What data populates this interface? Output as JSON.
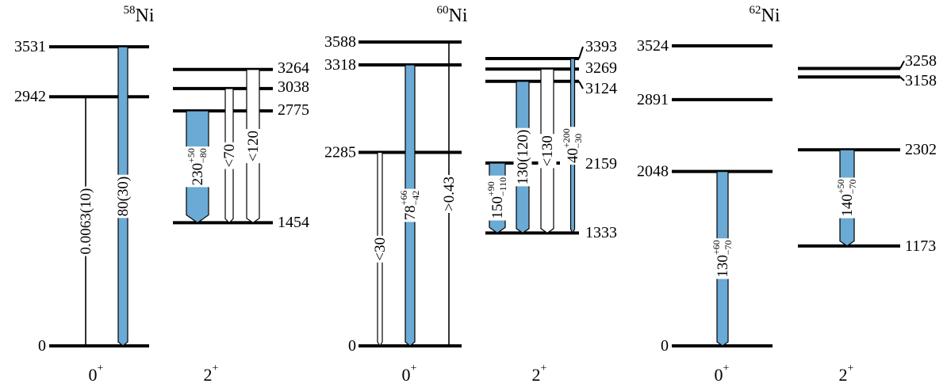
{
  "colors": {
    "band_fill": "#6aaad4",
    "line": "#000000",
    "open_fill": "#ffffff"
  },
  "panels": [
    {
      "id": "ni58",
      "title_mass": "58",
      "title_element": "Ni",
      "levels_0": [
        {
          "energy": 3531,
          "label": "3531"
        },
        {
          "energy": 2942,
          "label": "2942"
        },
        {
          "energy": 0,
          "label": "0"
        }
      ],
      "levels_2": [
        {
          "energy": 3264,
          "label": "3264"
        },
        {
          "energy": 3038,
          "label": "3038"
        },
        {
          "energy": 2775,
          "label": "2775"
        },
        {
          "energy": 1454,
          "label": "1454"
        }
      ],
      "transitions": [
        {
          "from": 2942,
          "to": 0,
          "style": "line",
          "label": "0.0063(10)"
        },
        {
          "from": 3531,
          "to": 0,
          "style": "band",
          "label": "80(30)"
        },
        {
          "from": 2775,
          "to": 1454,
          "style": "wide",
          "label": "230",
          "sup": "+50",
          "sub": "−80"
        },
        {
          "from": 3038,
          "to": 1454,
          "style": "open",
          "label": "<70"
        },
        {
          "from": 3264,
          "to": 1454,
          "style": "open",
          "label": "<120"
        }
      ],
      "spin_labels": [
        "0",
        "2"
      ],
      "spin_parity": "+"
    },
    {
      "id": "ni60",
      "title_mass": "60",
      "title_element": "Ni",
      "levels_0": [
        {
          "energy": 3588,
          "label": "3588"
        },
        {
          "energy": 3318,
          "label": "3318"
        },
        {
          "energy": 2285,
          "label": "2285"
        },
        {
          "energy": 0,
          "label": "0"
        }
      ],
      "levels_2": [
        {
          "energy": 3393,
          "label": "3393"
        },
        {
          "energy": 3269,
          "label": "3269"
        },
        {
          "energy": 3124,
          "label": "3124"
        },
        {
          "energy": 2159,
          "label": "2159"
        },
        {
          "energy": 1333,
          "label": "1333"
        }
      ],
      "transitions": [
        {
          "from": 2285,
          "to": 0,
          "style": "open",
          "label": "<30"
        },
        {
          "from": 3318,
          "to": 0,
          "style": "band",
          "label": "78",
          "sup": "+66",
          "sub": "−42"
        },
        {
          "from": 3588,
          "to": 0,
          "style": "line",
          "label": ">0.43"
        },
        {
          "from": 2159,
          "to": 1333,
          "style": "band",
          "label": "150",
          "sup": "+90",
          "sub": "−110"
        },
        {
          "from": 3124,
          "to": 1333,
          "style": "band",
          "label": "130(120)"
        },
        {
          "from": 3269,
          "to": 1333,
          "style": "open",
          "label": "<130"
        },
        {
          "from": 3393,
          "to": 1333,
          "style": "thin",
          "label": "40",
          "sup": "+200",
          "sub": "−30"
        }
      ],
      "spin_labels": [
        "0",
        "2"
      ],
      "spin_parity": "+"
    },
    {
      "id": "ni62",
      "title_mass": "62",
      "title_element": "Ni",
      "levels_0": [
        {
          "energy": 3524,
          "label": "3524"
        },
        {
          "energy": 2891,
          "label": "2891"
        },
        {
          "energy": 2048,
          "label": "2048"
        },
        {
          "energy": 0,
          "label": "0"
        }
      ],
      "levels_2": [
        {
          "energy": 3258,
          "label": "3258"
        },
        {
          "energy": 3158,
          "label": "3158"
        },
        {
          "energy": 2302,
          "label": "2302"
        },
        {
          "energy": 1173,
          "label": "1173"
        }
      ],
      "transitions": [
        {
          "from": 2048,
          "to": 0,
          "style": "band",
          "label": "130",
          "sup": "+60",
          "sub": "−70"
        },
        {
          "from": 2302,
          "to": 1173,
          "style": "band",
          "label": "140",
          "sup": "+50",
          "sub": "−70"
        }
      ],
      "spin_labels": [
        "0",
        "2"
      ],
      "spin_parity": "+"
    }
  ]
}
